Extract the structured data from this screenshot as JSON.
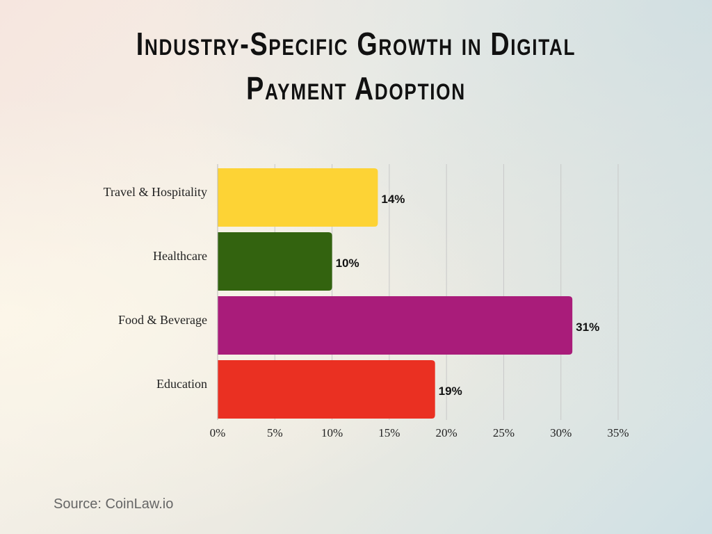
{
  "chart_data": {
    "type": "bar",
    "orientation": "horizontal",
    "title": "Industry-Specific Growth in Digital Payment Adoption",
    "title_lines": [
      "Industry-Specific Growth in Digital",
      "Payment Adoption"
    ],
    "categories": [
      "Travel & Hospitality",
      "Healthcare",
      "Food & Beverage",
      "Education"
    ],
    "values": [
      14,
      10,
      31,
      19
    ],
    "value_labels": [
      "14%",
      "10%",
      "31%",
      "19%"
    ],
    "colors": [
      "#FDD335",
      "#33630F",
      "#A91C7A",
      "#EA3022"
    ],
    "xlim": [
      0,
      35
    ],
    "xticks": [
      0,
      5,
      10,
      15,
      20,
      25,
      30,
      35
    ],
    "xtick_labels": [
      "0%",
      "5%",
      "10%",
      "15%",
      "20%",
      "25%",
      "30%",
      "35%"
    ],
    "xlabel": "",
    "ylabel": "",
    "grid": "vertical",
    "legend": "none"
  },
  "source": "Source: CoinLaw.io"
}
